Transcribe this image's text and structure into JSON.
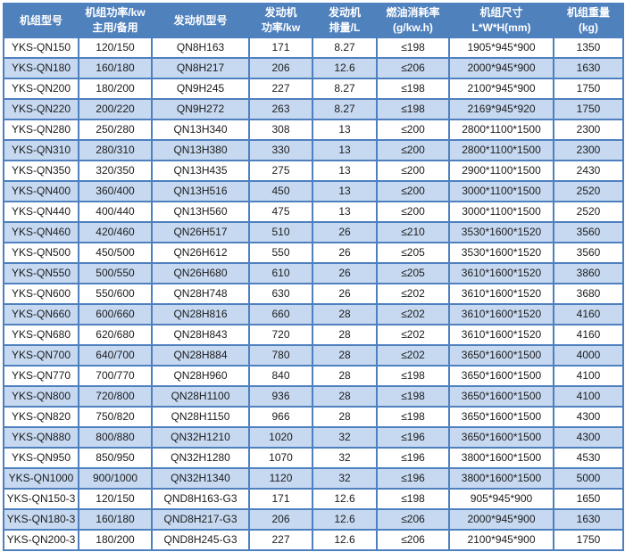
{
  "colors": {
    "header_bg": "#4f81bd",
    "header_text": "#ffffff",
    "row_bg": "#ffffff",
    "row_alt_bg": "#c7d9f1",
    "grid_border": "#4e80bf",
    "outer_border": "#38659f",
    "text": "#1c1c1c"
  },
  "table": {
    "columns": [
      {
        "id": "model",
        "line1": "机组型号",
        "line2": ""
      },
      {
        "id": "power",
        "line1": "机组功率/kw",
        "line2": "主用/备用"
      },
      {
        "id": "engine-model",
        "line1": "发动机型号",
        "line2": ""
      },
      {
        "id": "engine-power",
        "line1": "发动机",
        "line2": "功率/kw"
      },
      {
        "id": "displacement",
        "line1": "发动机",
        "line2": "排量/L"
      },
      {
        "id": "fuel-rate",
        "line1": "燃油消耗率",
        "line2": "(g/kw.h)"
      },
      {
        "id": "dimensions",
        "line1": "机组尺寸",
        "line2": "L*W*H(mm)"
      },
      {
        "id": "weight",
        "line1": "机组重量",
        "line2": "(kg)"
      }
    ],
    "rows": [
      [
        "YKS-QN150",
        "120/150",
        "QN8H163",
        "171",
        "8.27",
        "≤198",
        "1905*945*900",
        "1350"
      ],
      [
        "YKS-QN180",
        "160/180",
        "QN8H217",
        "206",
        "12.6",
        "≤206",
        "2000*945*900",
        "1630"
      ],
      [
        "YKS-QN200",
        "180/200",
        "QN9H245",
        "227",
        "8.27",
        "≤198",
        "2100*945*900",
        "1750"
      ],
      [
        "YKS-QN220",
        "200/220",
        "QN9H272",
        "263",
        "8.27",
        "≤198",
        "2169*945*920",
        "1750"
      ],
      [
        "YKS-QN280",
        "250/280",
        "QN13H340",
        "308",
        "13",
        "≤200",
        "2800*1100*1500",
        "2300"
      ],
      [
        "YKS-QN310",
        "280/310",
        "QN13H380",
        "330",
        "13",
        "≤200",
        "2800*1100*1500",
        "2300"
      ],
      [
        "YKS-QN350",
        "320/350",
        "QN13H435",
        "275",
        "13",
        "≤200",
        "2900*1100*1500",
        "2430"
      ],
      [
        "YKS-QN400",
        "360/400",
        "QN13H516",
        "450",
        "13",
        "≤200",
        "3000*1100*1500",
        "2520"
      ],
      [
        "YKS-QN440",
        "400/440",
        "QN13H560",
        "475",
        "13",
        "≤200",
        "3000*1100*1500",
        "2520"
      ],
      [
        "YKS-QN460",
        "420/460",
        "QN26H517",
        "510",
        "26",
        "≤210",
        "3530*1600*1520",
        "3560"
      ],
      [
        "YKS-QN500",
        "450/500",
        "QN26H612",
        "550",
        "26",
        "≤205",
        "3530*1600*1520",
        "3560"
      ],
      [
        "YKS-QN550",
        "500/550",
        "QN26H680",
        "610",
        "26",
        "≤205",
        "3610*1600*1520",
        "3860"
      ],
      [
        "YKS-QN600",
        "550/600",
        "QN28H748",
        "630",
        "26",
        "≤202",
        "3610*1600*1520",
        "3680"
      ],
      [
        "YKS-QN660",
        "600/660",
        "QN28H816",
        "660",
        "28",
        "≤202",
        "3610*1600*1520",
        "4160"
      ],
      [
        "YKS-QN680",
        "620/680",
        "QN28H843",
        "720",
        "28",
        "≤202",
        "3610*1600*1520",
        "4160"
      ],
      [
        "YKS-QN700",
        "640/700",
        "QN28H884",
        "780",
        "28",
        "≤202",
        "3650*1600*1500",
        "4000"
      ],
      [
        "YKS-QN770",
        "700/770",
        "QN28H960",
        "840",
        "28",
        "≤198",
        "3650*1600*1500",
        "4100"
      ],
      [
        "YKS-QN800",
        "720/800",
        "QN28H1100",
        "936",
        "28",
        "≤198",
        "3650*1600*1500",
        "4100"
      ],
      [
        "YKS-QN820",
        "750/820",
        "QN28H1150",
        "966",
        "28",
        "≤198",
        "3650*1600*1500",
        "4300"
      ],
      [
        "YKS-QN880",
        "800/880",
        "QN32H1210",
        "1020",
        "32",
        "≤196",
        "3650*1600*1500",
        "4300"
      ],
      [
        "YKS-QN950",
        "850/950",
        "QN32H1280",
        "1070",
        "32",
        "≤196",
        "3800*1600*1500",
        "4530"
      ],
      [
        "YKS-QN1000",
        "900/1000",
        "QN32H1340",
        "1120",
        "32",
        "≤196",
        "3800*1600*1500",
        "5000"
      ],
      [
        "YKS-QN150-3",
        "120/150",
        "QND8H163-G3",
        "171",
        "12.6",
        "≤198",
        "905*945*900",
        "1650"
      ],
      [
        "YKS-QN180-3",
        "160/180",
        "QND8H217-G3",
        "206",
        "12.6",
        "≤206",
        "2000*945*900",
        "1630"
      ],
      [
        "YKS-QN200-3",
        "180/200",
        "QND8H245-G3",
        "227",
        "12.6",
        "≤206",
        "2100*945*900",
        "1750"
      ]
    ]
  }
}
